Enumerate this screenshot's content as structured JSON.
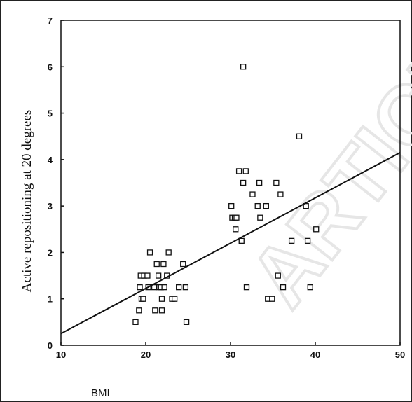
{
  "chart_data": {
    "type": "scatter",
    "title": "",
    "xlabel": "BMI",
    "ylabel": "Active repositioning at 20 degrees",
    "xlim": [
      10,
      50
    ],
    "ylim": [
      0,
      7
    ],
    "xticks": [
      "10",
      "20",
      "30",
      "40",
      "50"
    ],
    "yticks": [
      "0",
      "1",
      "2",
      "3",
      "4",
      "5",
      "6",
      "7"
    ],
    "grid": false,
    "watermark": "ARTICLE",
    "marker": "open-square",
    "points": [
      {
        "x": 18.8,
        "y": 0.5
      },
      {
        "x": 19.2,
        "y": 0.75
      },
      {
        "x": 19.3,
        "y": 1.25
      },
      {
        "x": 19.4,
        "y": 1.5
      },
      {
        "x": 19.5,
        "y": 1.0
      },
      {
        "x": 19.7,
        "y": 1.0
      },
      {
        "x": 19.8,
        "y": 1.5
      },
      {
        "x": 20.2,
        "y": 1.5
      },
      {
        "x": 20.3,
        "y": 1.25
      },
      {
        "x": 20.5,
        "y": 2.0
      },
      {
        "x": 21.0,
        "y": 1.25
      },
      {
        "x": 21.1,
        "y": 0.75
      },
      {
        "x": 21.3,
        "y": 1.75
      },
      {
        "x": 21.5,
        "y": 1.5
      },
      {
        "x": 21.6,
        "y": 1.25
      },
      {
        "x": 21.8,
        "y": 1.25
      },
      {
        "x": 21.9,
        "y": 0.75
      },
      {
        "x": 21.9,
        "y": 1.0
      },
      {
        "x": 22.1,
        "y": 1.75
      },
      {
        "x": 22.2,
        "y": 1.25
      },
      {
        "x": 22.5,
        "y": 1.5
      },
      {
        "x": 22.7,
        "y": 2.0
      },
      {
        "x": 23.1,
        "y": 1.0
      },
      {
        "x": 23.4,
        "y": 1.0
      },
      {
        "x": 23.9,
        "y": 1.25
      },
      {
        "x": 24.4,
        "y": 1.75
      },
      {
        "x": 24.7,
        "y": 1.25
      },
      {
        "x": 24.8,
        "y": 0.5
      },
      {
        "x": 30.1,
        "y": 3.0
      },
      {
        "x": 30.2,
        "y": 2.75
      },
      {
        "x": 30.5,
        "y": 2.75
      },
      {
        "x": 30.6,
        "y": 2.5
      },
      {
        "x": 30.7,
        "y": 2.75
      },
      {
        "x": 31.0,
        "y": 3.75
      },
      {
        "x": 31.3,
        "y": 2.25
      },
      {
        "x": 31.5,
        "y": 3.5
      },
      {
        "x": 31.5,
        "y": 6.0
      },
      {
        "x": 31.8,
        "y": 3.75
      },
      {
        "x": 31.9,
        "y": 1.25
      },
      {
        "x": 32.6,
        "y": 3.25
      },
      {
        "x": 33.2,
        "y": 3.0
      },
      {
        "x": 33.4,
        "y": 3.5
      },
      {
        "x": 33.5,
        "y": 2.75
      },
      {
        "x": 34.2,
        "y": 3.0
      },
      {
        "x": 34.4,
        "y": 1.0
      },
      {
        "x": 34.9,
        "y": 1.0
      },
      {
        "x": 35.4,
        "y": 3.5
      },
      {
        "x": 35.6,
        "y": 1.5
      },
      {
        "x": 35.9,
        "y": 3.25
      },
      {
        "x": 36.2,
        "y": 1.25
      },
      {
        "x": 37.2,
        "y": 2.25
      },
      {
        "x": 38.1,
        "y": 4.5
      },
      {
        "x": 38.9,
        "y": 3.0
      },
      {
        "x": 39.1,
        "y": 2.25
      },
      {
        "x": 39.4,
        "y": 1.25
      },
      {
        "x": 40.1,
        "y": 2.5
      }
    ],
    "trendline": {
      "x": [
        10,
        50
      ],
      "y": [
        0.25,
        4.15
      ]
    }
  }
}
